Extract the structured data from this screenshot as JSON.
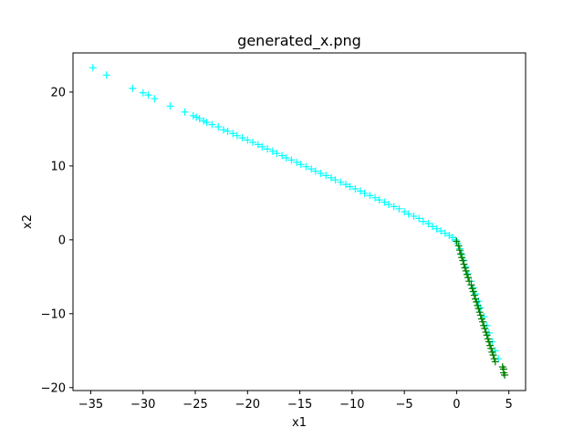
{
  "chart_data": {
    "type": "scatter",
    "title": "generated_x.png",
    "xlabel": "x1",
    "ylabel": "x2",
    "xlim": [
      -36.7,
      6.6
    ],
    "ylim": [
      -20.4,
      25.3
    ],
    "xticks": [
      -35,
      -30,
      -25,
      -20,
      -15,
      -10,
      -5,
      0,
      5
    ],
    "yticks": [
      -20,
      -10,
      0,
      10,
      20
    ],
    "grid": false,
    "marker": "+",
    "series": [
      {
        "color": "#00ffff",
        "points": [
          [
            -34.8,
            23.3
          ],
          [
            -33.5,
            22.3
          ],
          [
            -31.0,
            20.5
          ],
          [
            -30.0,
            19.9
          ],
          [
            -29.5,
            19.6
          ],
          [
            -28.9,
            19.1
          ],
          [
            -27.4,
            18.1
          ],
          [
            -26.0,
            17.3
          ],
          [
            -25.2,
            16.8
          ],
          [
            -24.9,
            16.6
          ],
          [
            -24.6,
            16.4
          ],
          [
            -24.2,
            16.1
          ],
          [
            -23.9,
            15.9
          ],
          [
            -23.4,
            15.6
          ],
          [
            -22.8,
            15.3
          ],
          [
            -22.3,
            14.9
          ],
          [
            -21.9,
            14.7
          ],
          [
            -21.4,
            14.4
          ],
          [
            -21.0,
            14.1
          ],
          [
            -20.5,
            13.8
          ],
          [
            -20.0,
            13.5
          ],
          [
            -19.5,
            13.2
          ],
          [
            -19.0,
            12.9
          ],
          [
            -18.6,
            12.6
          ],
          [
            -18.1,
            12.3
          ],
          [
            -17.6,
            12.0
          ],
          [
            -17.2,
            11.7
          ],
          [
            -16.7,
            11.4
          ],
          [
            -16.3,
            11.1
          ],
          [
            -15.8,
            10.8
          ],
          [
            -15.3,
            10.5
          ],
          [
            -14.9,
            10.2
          ],
          [
            -14.4,
            9.9
          ],
          [
            -13.9,
            9.6
          ],
          [
            -13.5,
            9.3
          ],
          [
            -13.0,
            9.0
          ],
          [
            -12.5,
            8.7
          ],
          [
            -12.0,
            8.4
          ],
          [
            -11.6,
            8.1
          ],
          [
            -11.1,
            7.8
          ],
          [
            -10.6,
            7.5
          ],
          [
            -10.2,
            7.2
          ],
          [
            -9.7,
            6.9
          ],
          [
            -9.2,
            6.6
          ],
          [
            -8.8,
            6.3
          ],
          [
            -8.3,
            6.0
          ],
          [
            -7.8,
            5.7
          ],
          [
            -7.4,
            5.4
          ],
          [
            -6.9,
            5.1
          ],
          [
            -6.5,
            4.8
          ],
          [
            -6.0,
            4.5
          ],
          [
            -5.5,
            4.2
          ],
          [
            -5.0,
            3.8
          ],
          [
            -4.6,
            3.5
          ],
          [
            -4.1,
            3.2
          ],
          [
            -3.6,
            2.9
          ],
          [
            -3.2,
            2.5
          ],
          [
            -2.7,
            2.2
          ],
          [
            -2.3,
            1.8
          ],
          [
            -1.9,
            1.5
          ],
          [
            -1.5,
            1.2
          ],
          [
            -1.1,
            0.9
          ],
          [
            -0.7,
            0.6
          ],
          [
            -0.4,
            0.3
          ],
          [
            -0.1,
            0.0
          ],
          [
            0.1,
            -0.5
          ],
          [
            0.3,
            -1.2
          ],
          [
            0.5,
            -2.0
          ],
          [
            0.7,
            -2.8
          ],
          [
            0.9,
            -3.7
          ],
          [
            1.1,
            -4.6
          ],
          [
            1.4,
            -5.6
          ],
          [
            1.6,
            -6.5
          ],
          [
            1.8,
            -7.3
          ],
          [
            2.1,
            -8.3
          ],
          [
            2.3,
            -9.2
          ],
          [
            2.6,
            -10.4
          ],
          [
            2.9,
            -11.6
          ],
          [
            3.1,
            -12.6
          ],
          [
            3.4,
            -13.8
          ],
          [
            3.7,
            -15.0
          ],
          [
            4.0,
            -16.1
          ]
        ]
      },
      {
        "color": "#008000",
        "points": [
          [
            0.0,
            -0.2
          ],
          [
            0.2,
            -0.8
          ],
          [
            0.3,
            -1.4
          ],
          [
            0.4,
            -1.9
          ],
          [
            0.5,
            -2.4
          ],
          [
            0.6,
            -2.8
          ],
          [
            0.7,
            -3.3
          ],
          [
            0.8,
            -3.8
          ],
          [
            0.9,
            -4.2
          ],
          [
            1.0,
            -4.7
          ],
          [
            1.1,
            -5.1
          ],
          [
            1.2,
            -5.6
          ],
          [
            1.4,
            -6.1
          ],
          [
            1.5,
            -6.6
          ],
          [
            1.6,
            -7.0
          ],
          [
            1.7,
            -7.5
          ],
          [
            1.8,
            -8.0
          ],
          [
            1.9,
            -8.4
          ],
          [
            2.0,
            -8.9
          ],
          [
            2.1,
            -9.3
          ],
          [
            2.2,
            -9.8
          ],
          [
            2.3,
            -10.2
          ],
          [
            2.4,
            -10.7
          ],
          [
            2.5,
            -11.1
          ],
          [
            2.6,
            -11.6
          ],
          [
            2.7,
            -12.0
          ],
          [
            2.8,
            -12.5
          ],
          [
            2.9,
            -12.9
          ],
          [
            3.0,
            -13.4
          ],
          [
            3.1,
            -13.8
          ],
          [
            3.2,
            -14.3
          ],
          [
            3.3,
            -14.7
          ],
          [
            3.4,
            -15.2
          ],
          [
            3.5,
            -15.6
          ],
          [
            3.6,
            -16.1
          ],
          [
            3.7,
            -16.5
          ],
          [
            4.4,
            -17.2
          ],
          [
            4.5,
            -17.5
          ],
          [
            4.5,
            -18.0
          ],
          [
            4.6,
            -18.3
          ]
        ]
      }
    ]
  }
}
